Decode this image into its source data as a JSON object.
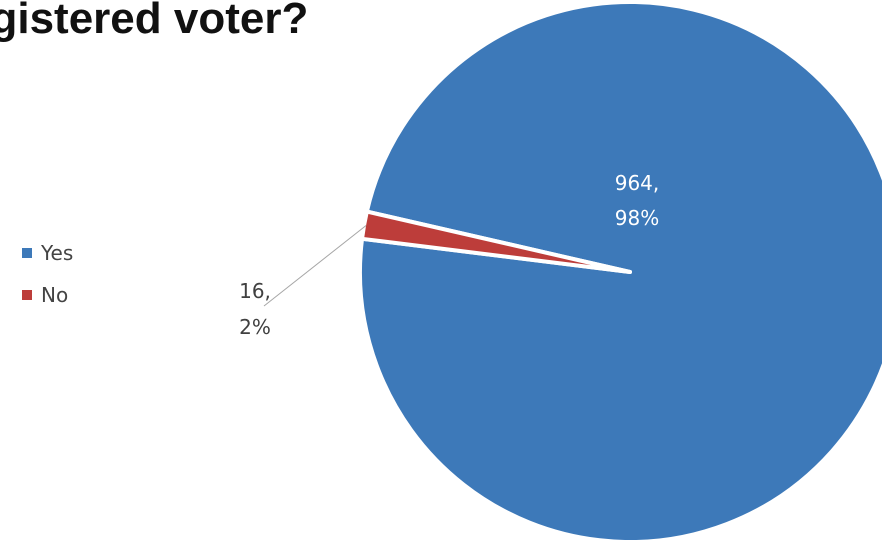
{
  "chart_data": {
    "type": "pie",
    "title": "egistered voter?",
    "categories": [
      "Yes",
      "No"
    ],
    "values": [
      964,
      16
    ],
    "percent_labels": [
      "98%",
      "2%"
    ],
    "data_labels": [
      {
        "value": "964,",
        "percent": "98%"
      },
      {
        "value": "16,",
        "percent": "2%"
      }
    ],
    "colors": [
      "#3d79b9",
      "#bd3d3a"
    ],
    "legend": [
      "Yes",
      "No"
    ],
    "legend_position": "left"
  }
}
